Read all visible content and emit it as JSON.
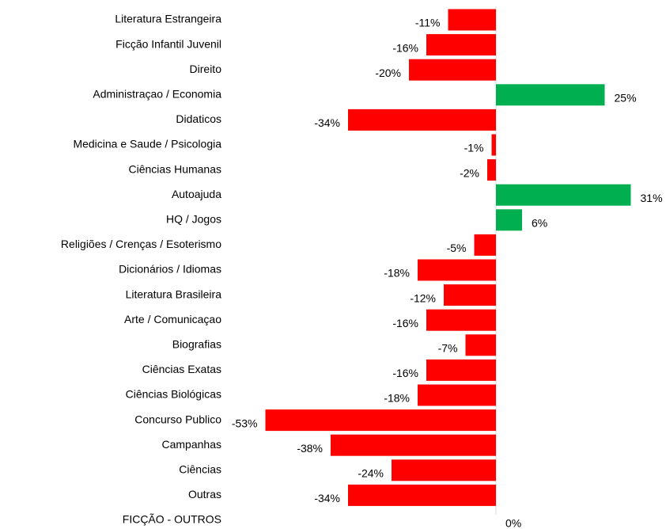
{
  "chart_data": {
    "type": "bar",
    "orientation": "horizontal",
    "categories": [
      "Literatura Estrangeira",
      "Ficção Infantil Juvenil",
      "Direito",
      "Administraçao / Economia",
      "Didaticos",
      "Medicina e Saude / Psicologia",
      "Ciências Humanas",
      "Autoajuda",
      "HQ / Jogos",
      "Religiões / Crenças / Esoterismo",
      "Dicionários / Idiomas",
      "Literatura Brasileira",
      "Arte / Comunicaçao",
      "Biografias",
      "Ciências Exatas",
      "Ciências Biológicas",
      "Concurso Publico",
      "Campanhas",
      "Ciências",
      "Outras",
      "FICÇÃO - OUTROS"
    ],
    "values": [
      -11,
      -16,
      -20,
      25,
      -34,
      -1,
      -2,
      31,
      6,
      -5,
      -18,
      -12,
      -16,
      -7,
      -16,
      -18,
      -53,
      -38,
      -24,
      -34,
      0
    ],
    "value_labels": [
      "-11%",
      "-16%",
      "-20%",
      "25%",
      "-34%",
      "-1%",
      "-2%",
      "31%",
      "6%",
      "-5%",
      "-18%",
      "-12%",
      "-16%",
      "-7%",
      "-16%",
      "-18%",
      "-53%",
      "-38%",
      "-24%",
      "-34%",
      "0%"
    ],
    "color_positive": "#00b050",
    "color_negative": "#ff0000"
  }
}
